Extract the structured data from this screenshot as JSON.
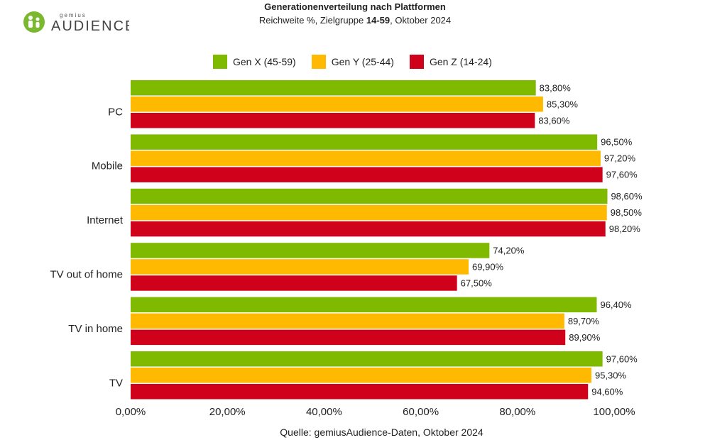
{
  "brand": {
    "small": "gemius",
    "big": "AUDIENCE",
    "color": "#7cb82f"
  },
  "header": {
    "title": "Generationenverteilung nach Plattformen",
    "subtitle_pre": "Reichweite %, Zielgruppe ",
    "subtitle_bold": "14-59",
    "subtitle_post": ", Oktober 2024"
  },
  "source": "Quelle: gemiusAudience-Daten, Oktober 2024",
  "chart_data": {
    "type": "bar",
    "orientation": "horizontal",
    "categories": [
      "PC",
      "Mobile",
      "Internet",
      "TV out of home",
      "TV in home",
      "TV"
    ],
    "series": [
      {
        "name": "Gen X (45-59)",
        "color": "#7fba00",
        "values": [
          83.8,
          96.5,
          98.6,
          74.2,
          96.4,
          97.6
        ],
        "labels": [
          "83,80%",
          "96,50%",
          "98,60%",
          "74,20%",
          "96,40%",
          "97,60%"
        ]
      },
      {
        "name": "Gen Y (25-44)",
        "color": "#ffb900",
        "values": [
          85.3,
          97.2,
          98.5,
          69.9,
          89.7,
          95.3
        ],
        "labels": [
          "85,30%",
          "97,20%",
          "98,50%",
          "69,90%",
          "89,70%",
          "95,30%"
        ]
      },
      {
        "name": "Gen Z (14-24)",
        "color": "#d0021b",
        "values": [
          83.6,
          97.6,
          98.2,
          67.5,
          89.9,
          94.6
        ],
        "labels": [
          "83,60%",
          "97,60%",
          "98,20%",
          "67,50%",
          "89,90%",
          "94,60%"
        ]
      }
    ],
    "xlim": [
      0,
      100
    ],
    "xticks": [
      0,
      20,
      40,
      60,
      80,
      100
    ],
    "xtick_labels": [
      "0,00%",
      "20,00%",
      "40,00%",
      "60,00%",
      "80,00%",
      "100,00%"
    ],
    "legend_position": "top",
    "grid": false
  }
}
